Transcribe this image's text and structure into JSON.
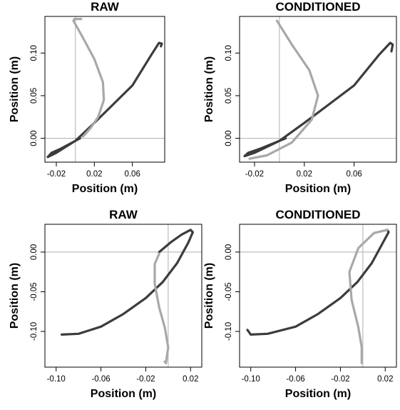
{
  "chart_data": [
    {
      "type": "line",
      "title": "RAW",
      "xlabel": "Position (m)",
      "ylabel": "Position (m)",
      "xlim": [
        -0.032,
        0.094
      ],
      "ylim": [
        -0.028,
        0.143
      ],
      "xticks": [
        -0.02,
        0.02,
        0.06
      ],
      "xtick_labels": [
        "-0.02",
        "0.02",
        "0.06"
      ],
      "yticks": [
        0.0,
        0.05,
        0.1
      ],
      "ytick_labels": [
        "0.00",
        "0.05",
        "0.10"
      ],
      "ref_x": 0.0,
      "ref_y": 0.0,
      "grid": false,
      "series": [
        {
          "color": "#3c3c3c",
          "x": [
            0.005,
            -0.005,
            -0.015,
            -0.025,
            -0.029,
            -0.02,
            0.0,
            0.02,
            0.04,
            0.06,
            0.08,
            0.088,
            0.091,
            0.09
          ],
          "y": [
            0.0,
            -0.006,
            -0.012,
            -0.017,
            -0.022,
            -0.017,
            -0.003,
            0.018,
            0.04,
            0.062,
            0.098,
            0.112,
            0.111,
            0.108
          ]
        },
        {
          "color": "#a8a8a8",
          "x": [
            0.008,
            0.016,
            0.024,
            0.03,
            0.029,
            0.02,
            0.008,
            -0.002,
            -0.001,
            0.006
          ],
          "y": [
            0.002,
            0.012,
            0.025,
            0.045,
            0.066,
            0.093,
            0.118,
            0.138,
            0.14,
            0.14
          ]
        }
      ]
    },
    {
      "type": "line",
      "title": "CONDITIONED",
      "xlabel": "Position (m)",
      "ylabel": "Position (m)",
      "xlim": [
        -0.032,
        0.094
      ],
      "ylim": [
        -0.028,
        0.143
      ],
      "xticks": [
        -0.02,
        0.02,
        0.06
      ],
      "xtick_labels": [
        "-0.02",
        "0.02",
        "0.06"
      ],
      "yticks": [
        0.0,
        0.05,
        0.1
      ],
      "ytick_labels": [
        "0.00",
        "0.05",
        "0.10"
      ],
      "ref_x": 0.0,
      "ref_y": 0.0,
      "grid": false,
      "series": [
        {
          "color": "#3c3c3c",
          "x": [
            0.005,
            -0.005,
            -0.015,
            -0.025,
            -0.028,
            -0.02,
            0.0,
            0.02,
            0.04,
            0.06,
            0.08,
            0.089,
            0.091,
            0.09
          ],
          "y": [
            0.0,
            -0.006,
            -0.012,
            -0.017,
            -0.021,
            -0.017,
            -0.003,
            0.018,
            0.04,
            0.062,
            0.098,
            0.112,
            0.11,
            0.102
          ]
        },
        {
          "color": "#a8a8a8",
          "x": [
            -0.024,
            -0.01,
            0.01,
            0.026,
            0.031,
            0.024,
            0.01,
            -0.002
          ],
          "y": [
            -0.024,
            -0.02,
            -0.005,
            0.022,
            0.05,
            0.08,
            0.11,
            0.138
          ]
        }
      ]
    },
    {
      "type": "line",
      "title": "RAW",
      "xlabel": "Position (m)",
      "ylabel": "Position (m)",
      "xlim": [
        -0.11,
        0.03
      ],
      "ylim": [
        -0.145,
        0.035
      ],
      "xticks": [
        -0.1,
        -0.06,
        -0.02,
        0.02
      ],
      "xtick_labels": [
        "-0.10",
        "-0.06",
        "-0.02",
        "0.02"
      ],
      "yticks": [
        -0.1,
        -0.05,
        0.0
      ],
      "ytick_labels": [
        "-0.10",
        "-0.05",
        "0.00"
      ],
      "ref_x": 0.0,
      "ref_y": 0.0,
      "grid": false,
      "series": [
        {
          "color": "#3c3c3c",
          "x": [
            -0.095,
            -0.08,
            -0.06,
            -0.04,
            -0.02,
            -0.005,
            0.008,
            0.018,
            0.022,
            0.02,
            0.012,
            0.002,
            -0.008
          ],
          "y": [
            -0.104,
            -0.103,
            -0.094,
            -0.078,
            -0.058,
            -0.038,
            -0.014,
            0.012,
            0.025,
            0.028,
            0.022,
            0.012,
            0.0
          ]
        },
        {
          "color": "#a8a8a8",
          "x": [
            -0.008,
            -0.012,
            -0.012,
            -0.008,
            -0.003,
            0.0,
            -0.002,
            -0.003
          ],
          "y": [
            -0.002,
            -0.015,
            -0.04,
            -0.07,
            -0.095,
            -0.12,
            -0.14,
            -0.138
          ]
        }
      ]
    },
    {
      "type": "line",
      "title": "CONDITIONED",
      "xlabel": "Position (m)",
      "ylabel": "Position (m)",
      "xlim": [
        -0.11,
        0.03
      ],
      "ylim": [
        -0.145,
        0.035
      ],
      "xticks": [
        -0.1,
        -0.06,
        -0.02,
        0.02
      ],
      "xtick_labels": [
        "-0.10",
        "-0.06",
        "-0.02",
        "0.02"
      ],
      "yticks": [
        -0.1,
        -0.05,
        0.0
      ],
      "ytick_labels": [
        "-0.10",
        "-0.05",
        "0.00"
      ],
      "ref_x": 0.0,
      "ref_y": 0.0,
      "grid": false,
      "series": [
        {
          "color": "#3c3c3c",
          "x": [
            -0.103,
            -0.1,
            -0.085,
            -0.06,
            -0.04,
            -0.02,
            -0.005,
            0.008,
            0.018,
            0.023,
            0.022
          ],
          "y": [
            -0.098,
            -0.104,
            -0.103,
            -0.094,
            -0.078,
            -0.058,
            -0.038,
            -0.014,
            0.012,
            0.025,
            0.028
          ]
        },
        {
          "color": "#a8a8a8",
          "x": [
            0.022,
            0.01,
            -0.004,
            -0.012,
            -0.01,
            -0.004,
            -0.001,
            -0.001
          ],
          "y": [
            0.028,
            0.024,
            0.005,
            -0.025,
            -0.06,
            -0.095,
            -0.12,
            -0.14
          ]
        }
      ]
    }
  ]
}
